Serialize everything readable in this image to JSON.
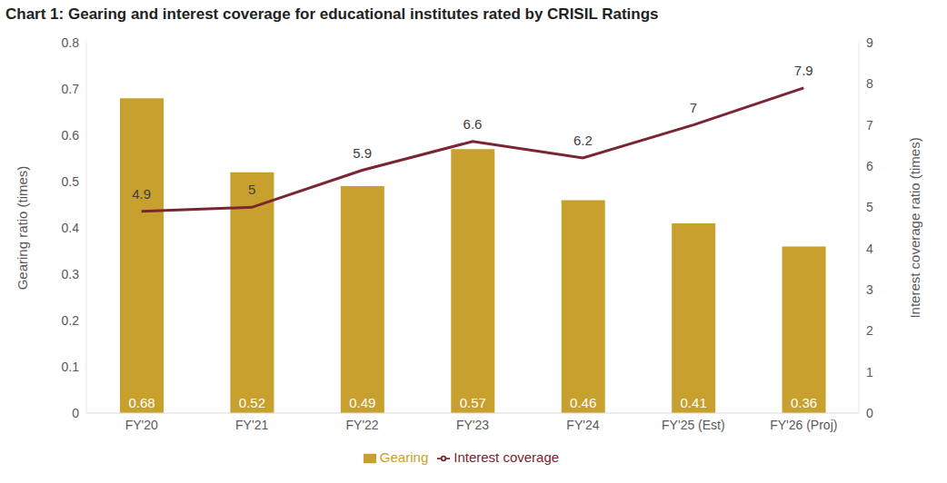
{
  "chart_data": {
    "type": "bar",
    "title": "Chart 1: Gearing and interest coverage for educational institutes rated by CRISIL Ratings",
    "categories": [
      "FY'20",
      "FY'21",
      "FY'22",
      "FY'23",
      "FY'24",
      "FY'25 (Est)",
      "FY'26 (Proj)"
    ],
    "series": [
      {
        "name": "Gearing",
        "type": "bar",
        "color": "#c8a02e",
        "values": [
          0.68,
          0.52,
          0.49,
          0.57,
          0.46,
          0.41,
          0.36
        ]
      },
      {
        "name": "Interest coverage",
        "type": "line",
        "axis": "y2",
        "color": "#7a2531",
        "values": [
          4.9,
          5,
          5.9,
          6.6,
          6.2,
          7,
          7.9
        ]
      }
    ],
    "ylabel": "Gearing ratio (times)",
    "y2label": "Interest coverage ratio (times)",
    "ylim": [
      0,
      0.8
    ],
    "yticks": [
      0,
      0.1,
      0.2,
      0.3,
      0.4,
      0.5,
      0.6,
      0.7,
      0.8
    ],
    "y2lim": [
      0,
      9
    ],
    "y2ticks": [
      0,
      1,
      2,
      3,
      4,
      5,
      6,
      7,
      8,
      9
    ],
    "grid": false,
    "legend": "bottom",
    "data_labels": true
  }
}
